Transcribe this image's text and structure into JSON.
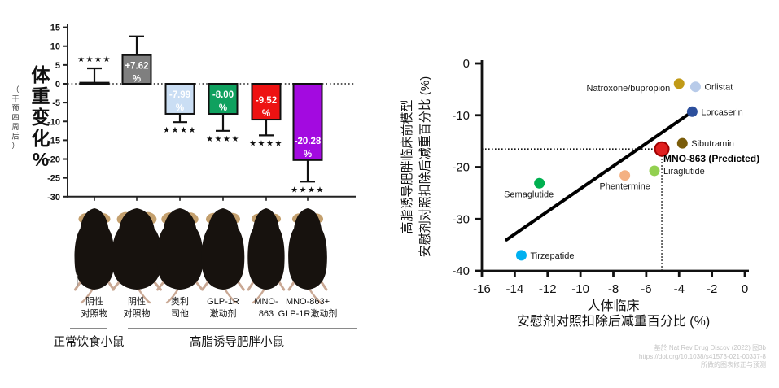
{
  "page": {
    "background": "#ffffff"
  },
  "footer": {
    "line1": "基於 Nat Rev Drug Discov (2022) 图3b",
    "line2": "https://doi.org/10.1038/s41573-021-00337-8",
    "line3": "所做的图表修正与预测",
    "color": "#c4c4c4"
  },
  "chart_data": [
    {
      "type": "bar",
      "id": "weight-change-bar-chart",
      "ylabel": "体重变化%",
      "ylabel_note": "（干预四周后）",
      "ylim": [
        -30,
        15
      ],
      "yticks": [
        15,
        10,
        5,
        0,
        -5,
        -10,
        -15,
        -20,
        -25,
        -30
      ],
      "zero_line": "dotted",
      "categories": [
        [
          "阴性",
          "对照物"
        ],
        [
          "阴性",
          "对照物"
        ],
        [
          "奥利",
          "司他"
        ],
        [
          "GLP-1R",
          "激动剂"
        ],
        [
          "MNO-",
          "863"
        ],
        [
          "MNO-863+",
          "GLP-1R激动剂"
        ]
      ],
      "values": [
        0.3,
        7.62,
        -7.99,
        -8.0,
        -9.52,
        -20.28
      ],
      "bar_labels": [
        null,
        [
          "+7.62",
          "%"
        ],
        [
          "-7.99",
          "%"
        ],
        [
          "-8.00",
          "%"
        ],
        [
          "-9.52",
          "%"
        ],
        [
          "-20.28",
          "%"
        ]
      ],
      "error_tips": [
        4.1,
        12.6,
        -10.2,
        -12.5,
        -13.7,
        -26.0
      ],
      "significance": [
        "★★★★",
        null,
        "★★★★",
        "★★★★",
        "★★★★",
        "★★★★"
      ],
      "bar_colors": [
        "#141414",
        "#7f7f7f",
        "#cadef4",
        "#0fa15f",
        "#ee1212",
        "#a30ae0"
      ],
      "bar_label_text_color": "#ffffff",
      "groups": [
        {
          "label": "正常饮食小鼠",
          "span": [
            0,
            0
          ]
        },
        {
          "label": "高脂诱导肥胖小鼠",
          "span": [
            1,
            5
          ]
        }
      ],
      "mice_scale": [
        0.8,
        1.0,
        0.93,
        0.86,
        0.74,
        0.78
      ]
    },
    {
      "type": "scatter",
      "id": "clinical-vs-preclinical-scatter",
      "xlabel_line1": "人体临床",
      "xlabel_line2": "安慰剂对照扣除后减重百分比 (%)",
      "ylabel_line1": "高脂诱导肥胖临床前模型",
      "ylabel_line2": "安慰剂对照扣除后减重百分比 (%)",
      "xlim": [
        -16,
        0
      ],
      "ylim": [
        -40,
        0
      ],
      "xticks": [
        -16,
        -14,
        -12,
        -10,
        -8,
        -6,
        -4,
        -2,
        0
      ],
      "yticks": [
        0,
        -10,
        -20,
        -30,
        -40
      ],
      "points": [
        {
          "name": "Natroxone/bupropion",
          "x": -4.0,
          "y": -3.9,
          "color": "#c19a17",
          "label_pos": "left-below"
        },
        {
          "name": "Orlistat",
          "x": -3.0,
          "y": -4.5,
          "color": "#b8cbe9",
          "label_pos": "right"
        },
        {
          "name": "Lorcaserin",
          "x": -3.2,
          "y": -9.3,
          "color": "#2c4f9c",
          "label_pos": "right"
        },
        {
          "name": "Sibutramin",
          "x": -3.8,
          "y": -15.4,
          "color": "#7a5c0a",
          "label_pos": "right"
        },
        {
          "name": "MNO-863 (Predicted)",
          "x": -5.05,
          "y": -16.5,
          "color": "#e01f1f",
          "label_pos": "below-right",
          "bold": true,
          "highlight": true
        },
        {
          "name": "Liraglutide",
          "x": -5.5,
          "y": -20.7,
          "color": "#92d050",
          "label_pos": "right"
        },
        {
          "name": "Phentermine",
          "x": -7.3,
          "y": -21.6,
          "color": "#f4b183",
          "label_pos": "below"
        },
        {
          "name": "Semaglutide",
          "x": -12.5,
          "y": -23.1,
          "color": "#00b050",
          "label_pos": "below-left"
        },
        {
          "name": "Tirzepatide",
          "x": -13.6,
          "y": -37.0,
          "color": "#00b0f0",
          "label_pos": "right"
        }
      ],
      "trend_line": {
        "x1": -14.5,
        "y1": -34.0,
        "x2": -3.2,
        "y2": -9.3
      },
      "reference_point": {
        "x": -5.05,
        "y": -16.5
      }
    }
  ]
}
